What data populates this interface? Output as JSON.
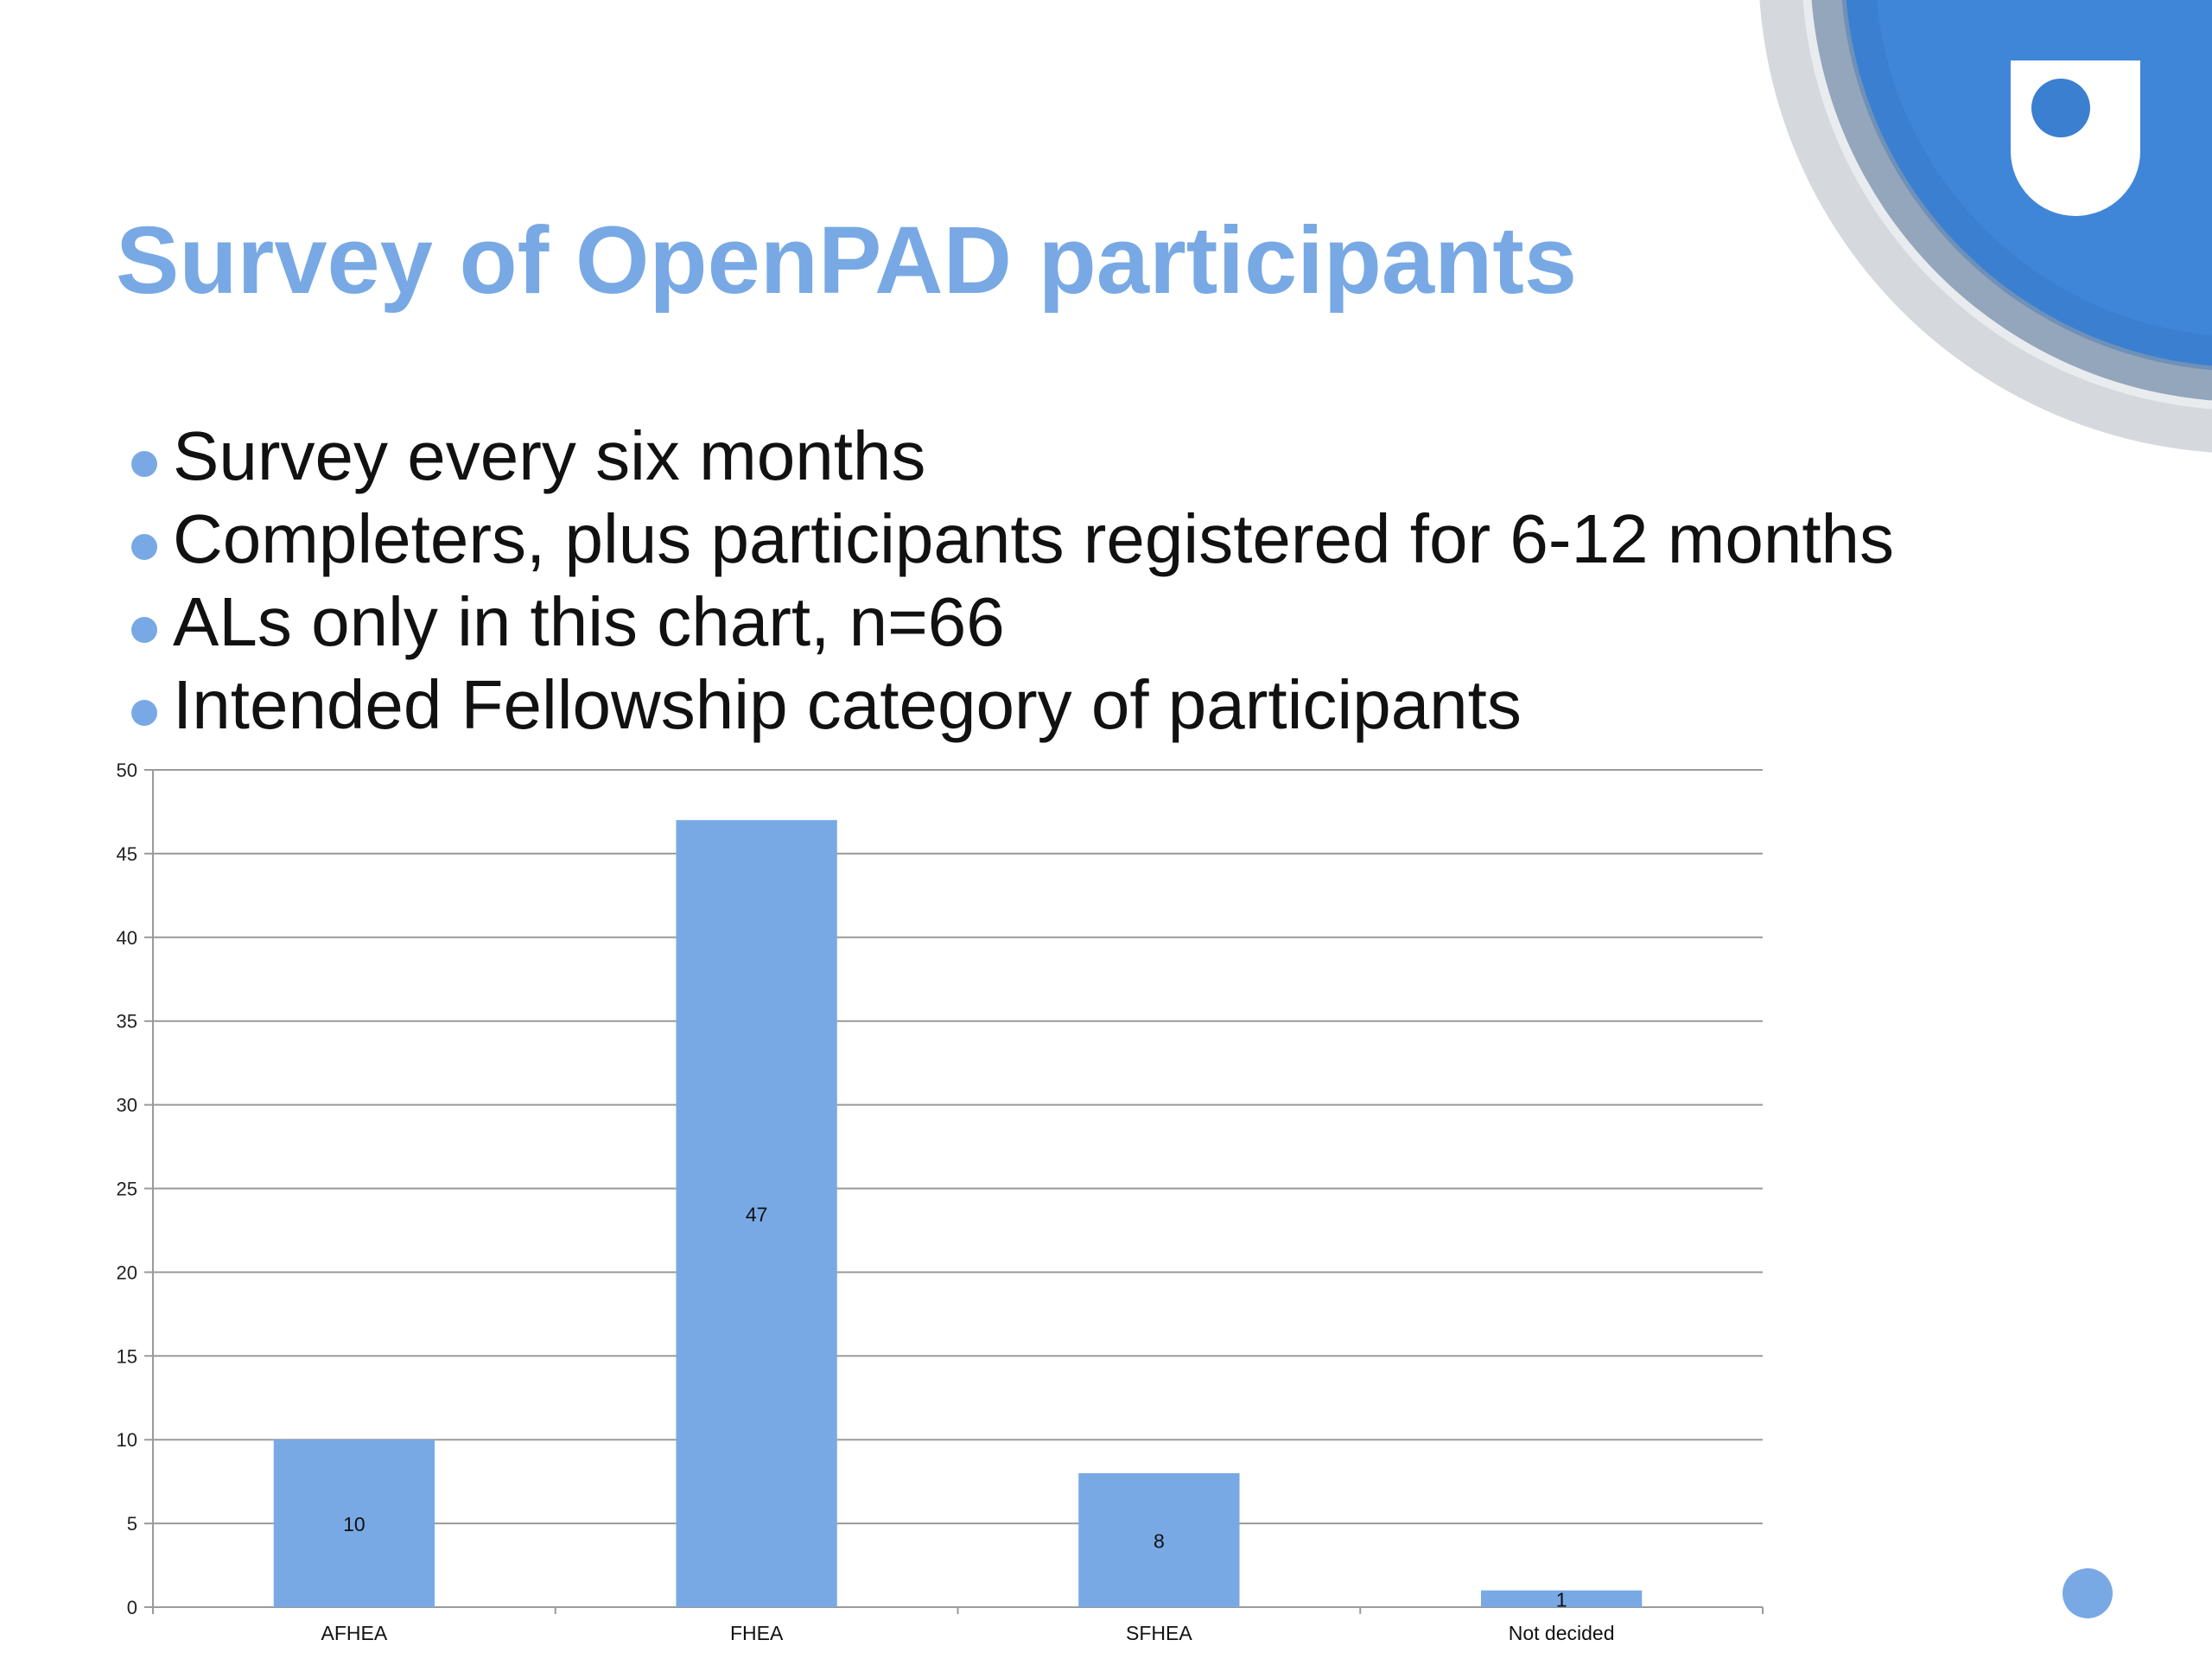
{
  "slide": {
    "title": "Survey of OpenPAD participants",
    "bullets": [
      "Survey every six months",
      "Completers, plus participants registered for 6-12 months",
      "ALs only in this chart, n=66",
      "Intended Fellowship category of participants"
    ]
  },
  "colors": {
    "accent": "#78a9e4",
    "bar": "#78a9e4",
    "logo_blue": "#3a7fd0",
    "logo_ring_outer": "#c8ced6",
    "logo_ring_mid": "#8d9fb6"
  },
  "chart_data": {
    "type": "bar",
    "title": "",
    "xlabel": "",
    "ylabel": "",
    "categories": [
      "AFHEA",
      "FHEA",
      "SFHEA",
      "Not decided"
    ],
    "values": [
      10,
      47,
      8,
      1
    ],
    "data_labels": [
      "10",
      "47",
      "8",
      "1"
    ],
    "ylim": [
      0,
      50
    ],
    "yticks": [
      "0",
      "5",
      "10",
      "15",
      "20",
      "25",
      "30",
      "35",
      "40",
      "45",
      "50"
    ],
    "grid": true,
    "legend": "none"
  }
}
